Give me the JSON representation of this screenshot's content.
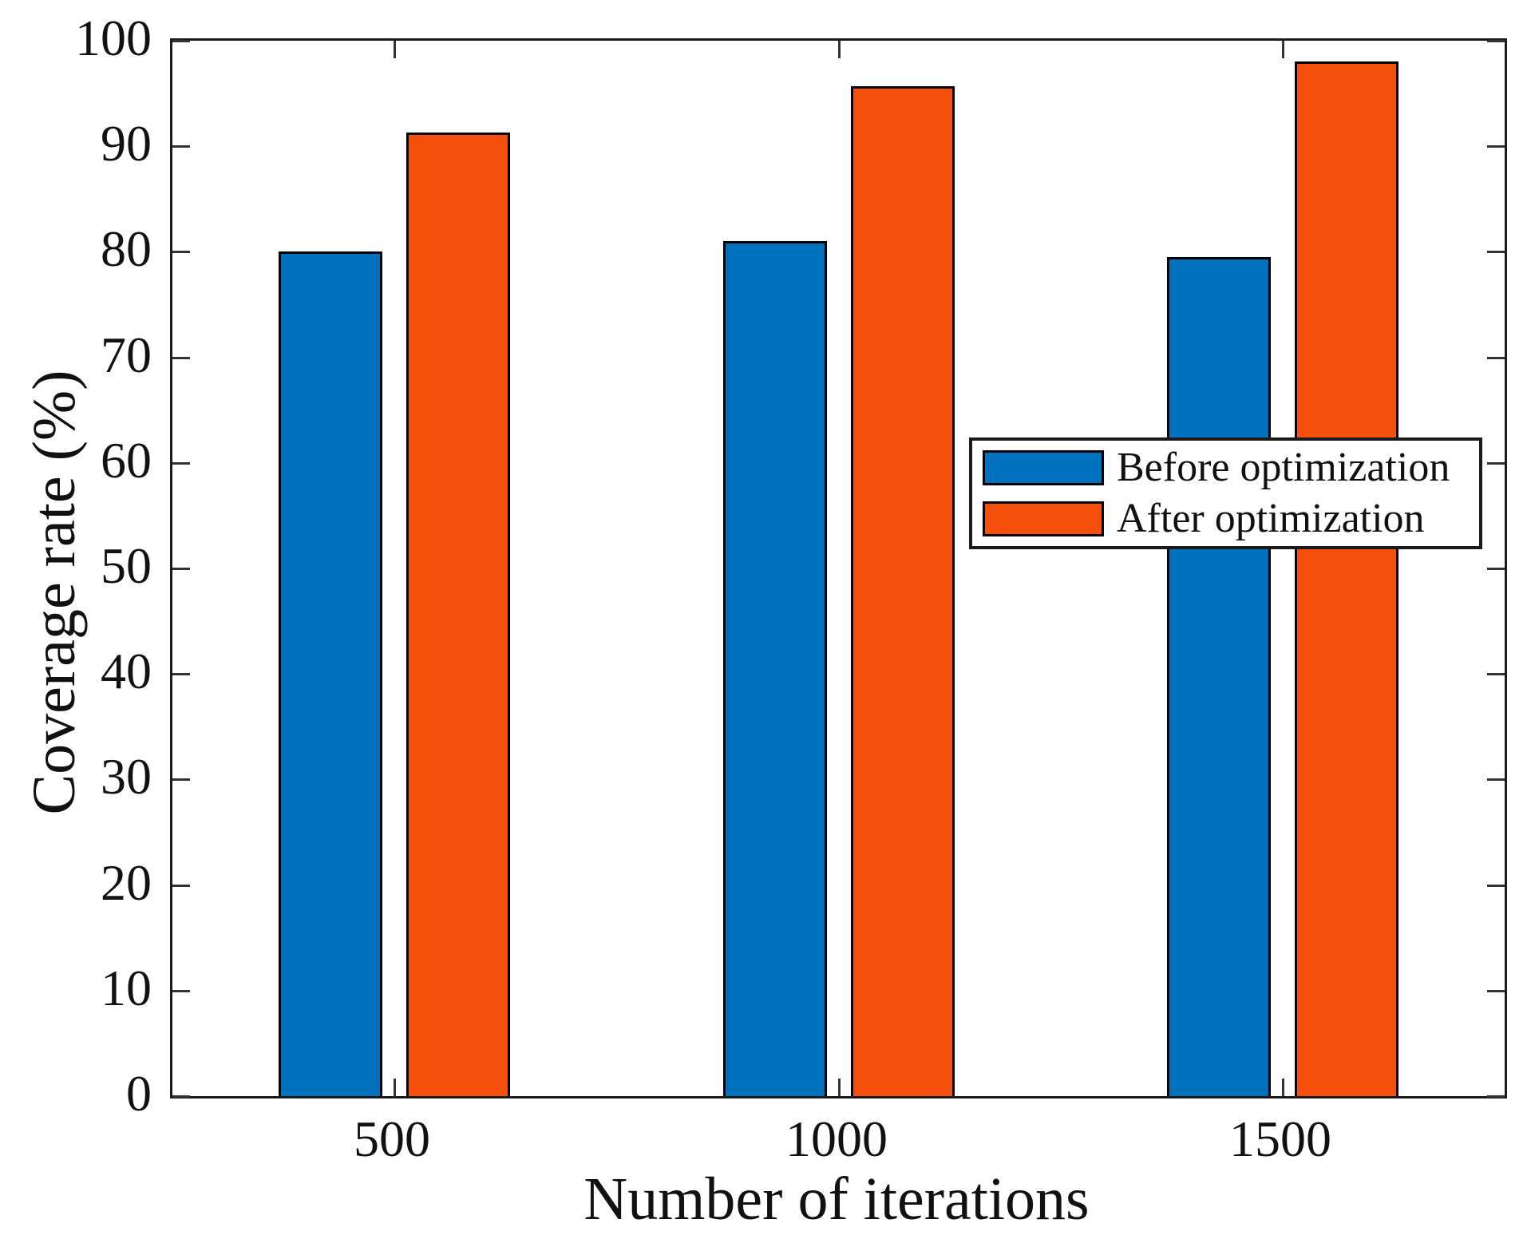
{
  "chart_data": {
    "type": "bar",
    "title": "",
    "xlabel": "Number of iterations",
    "ylabel": "Coverage rate (%)",
    "categories": [
      "500",
      "1000",
      "1500"
    ],
    "series": [
      {
        "name": "Before optimization",
        "color": "#0072BD",
        "values": [
          80,
          81,
          79.5
        ]
      },
      {
        "name": "After optimization",
        "color": "#F4500D",
        "values": [
          91.3,
          95.7,
          98
        ]
      }
    ],
    "ylim": [
      0,
      100
    ],
    "y_ticks": [
      0,
      10,
      20,
      30,
      40,
      50,
      60,
      70,
      80,
      90,
      100
    ],
    "grid": false,
    "legend_position": "middle-right",
    "bar_edge_color": "#000000",
    "axis_color": "#1a1a1a"
  }
}
